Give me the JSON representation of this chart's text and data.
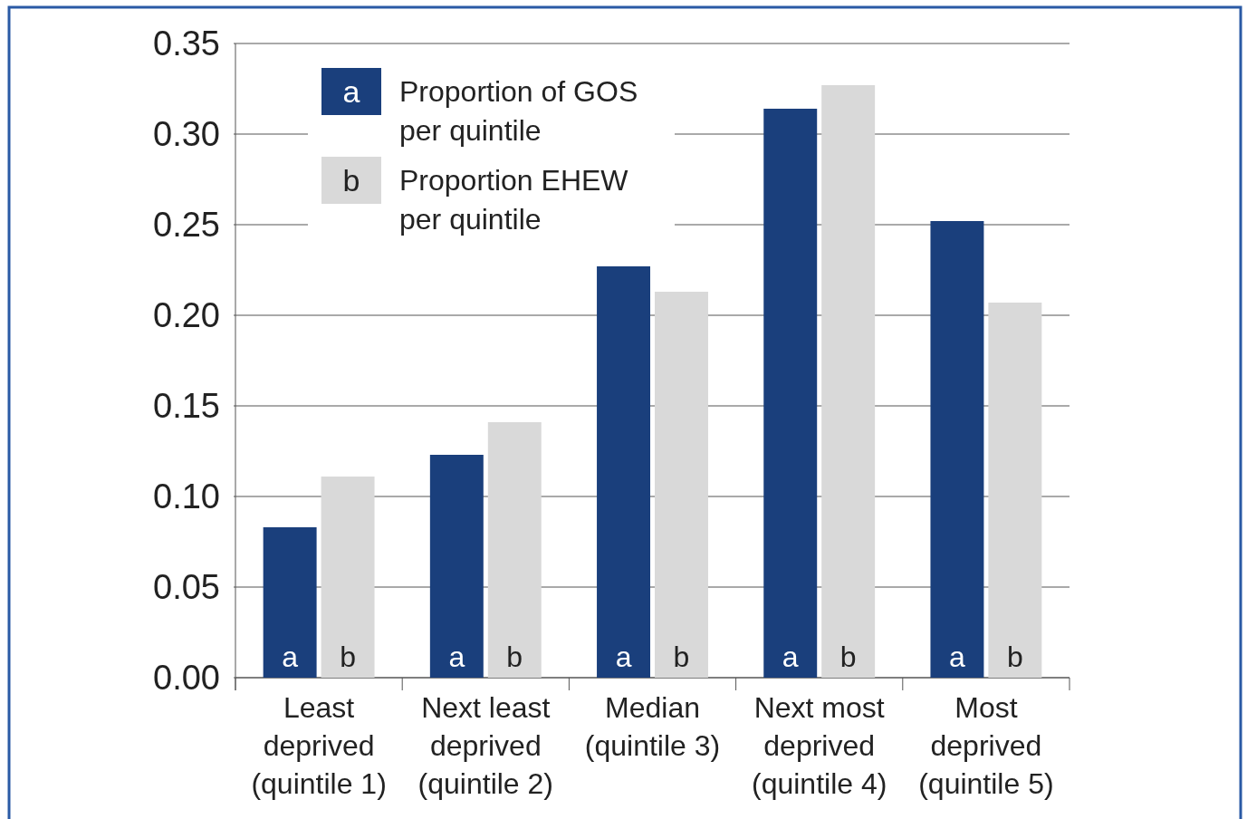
{
  "chart_data": {
    "type": "bar",
    "categories": [
      "Least\ndeprived\n(quintile 1)",
      "Next least\ndeprived\n(quintile 2)",
      "Median\n(quintile 3)",
      "Next most\ndeprived\n(quintile 4)",
      "Most\ndeprived\n(quintile 5)"
    ],
    "series": [
      {
        "name": "Proportion of GOS\nper quintile",
        "color": "#1a3f7c",
        "values": [
          0.083,
          0.123,
          0.227,
          0.314,
          0.252
        ]
      },
      {
        "name": "Proportion EHEW\nper quintile",
        "color": "#d9d9d9",
        "values": [
          0.111,
          0.141,
          0.213,
          0.327,
          0.207
        ]
      }
    ],
    "annotations": [
      "a",
      "b"
    ],
    "ylim": [
      0,
      0.35
    ],
    "yticks": [
      {
        "value": 0,
        "label": "0.00"
      },
      {
        "value": 0.05,
        "label": "0.05"
      },
      {
        "value": 0.1,
        "label": "0.10"
      },
      {
        "value": 0.15,
        "label": "0.15"
      },
      {
        "value": 0.2,
        "label": "0.20"
      },
      {
        "value": 0.25,
        "label": "0.25"
      },
      {
        "value": 0.3,
        "label": "0.30"
      },
      {
        "value": 0.35,
        "label": "0.35"
      }
    ],
    "grid": "y",
    "legend": "top left"
  }
}
